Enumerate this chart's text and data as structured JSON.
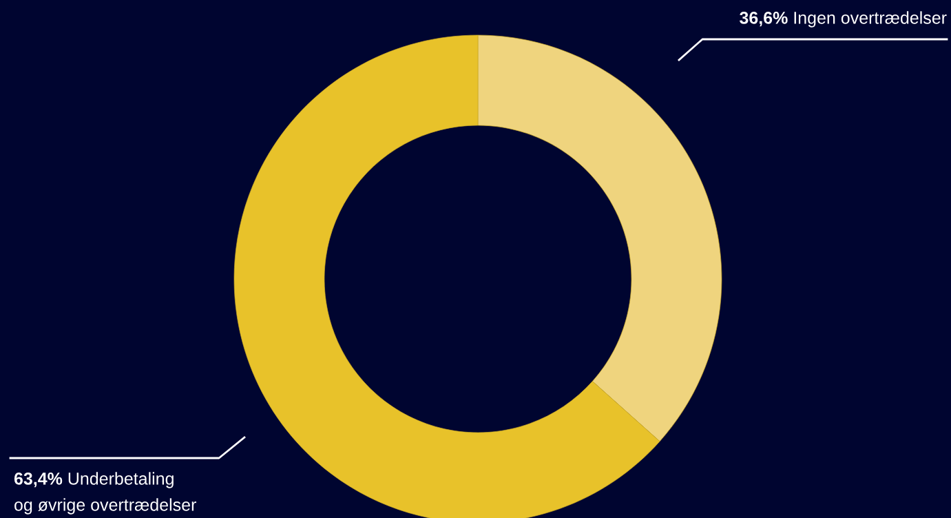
{
  "chart_data": {
    "type": "donut",
    "categories": [
      "Ingen overtrædelser",
      "Underbetaling\nog øvrige overtrædelser"
    ],
    "values": [
      36.6,
      63.4
    ],
    "colors": [
      "#efd47e",
      "#e8c22a"
    ],
    "value_labels": [
      "36,6%",
      "63,4%"
    ],
    "legend": false
  }
}
